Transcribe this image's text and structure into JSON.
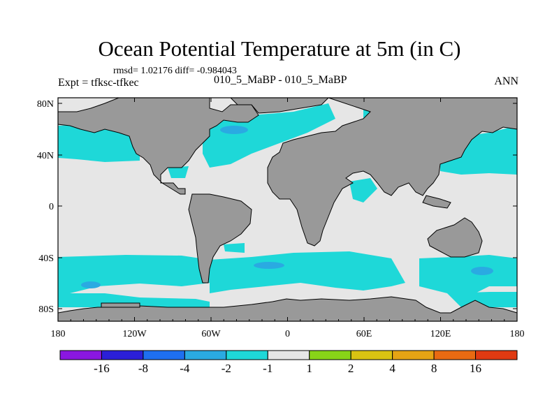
{
  "chart_data": {
    "type": "heatmap",
    "title": "Ocean Potential Temperature at 5m (in C)",
    "stats": "rmsd= 1.02176 diff= -0.984043",
    "left_label": "Expt = tfksc-tfkec",
    "center_label": "010_5_MaBP - 010_5_MaBP",
    "right_label": "ANN",
    "x_ticks": [
      "180",
      "120W",
      "60W",
      "0",
      "60E",
      "120E",
      "180"
    ],
    "y_ticks": [
      "80N",
      "40N",
      "0",
      "40S",
      "80S"
    ],
    "colorbar": {
      "levels": [
        "-16",
        "-8",
        "-4",
        "-2",
        "-1",
        "1",
        "2",
        "4",
        "8",
        "16"
      ],
      "colors": [
        "#8a17e0",
        "#2b1fd8",
        "#1e6ff0",
        "#2aaae2",
        "#1ed8d8",
        "#e6e6e6",
        "#88d418",
        "#d9c312",
        "#e6a414",
        "#e86a12",
        "#e03a12"
      ]
    },
    "colors": {
      "land": "#999999",
      "ocean_neutral": "#e6e6e6",
      "cool": "#1ed8d8",
      "cooler": "#2aaae2"
    }
  }
}
